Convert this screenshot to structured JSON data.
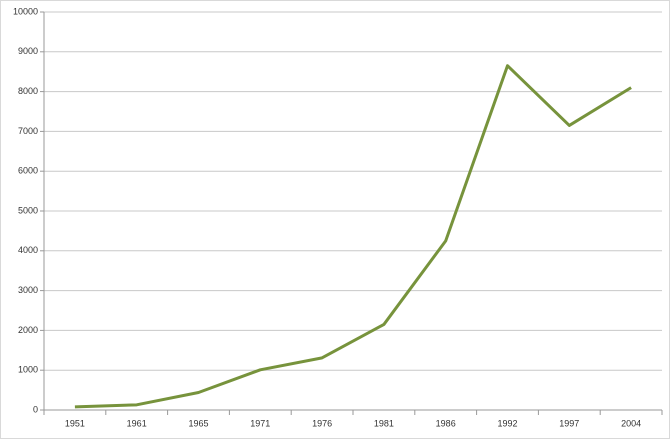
{
  "chart_data": {
    "type": "line",
    "categories": [
      "1951",
      "1961",
      "1965",
      "1971",
      "1976",
      "1981",
      "1986",
      "1992",
      "1997",
      "2004"
    ],
    "values": [
      80,
      130,
      440,
      1010,
      1310,
      2150,
      4250,
      8650,
      7150,
      8100
    ],
    "color": "#77933c",
    "ylim": [
      0,
      10000
    ],
    "yticks": [
      0,
      1000,
      2000,
      3000,
      4000,
      5000,
      6000,
      7000,
      8000,
      9000,
      10000
    ],
    "grid": true
  }
}
